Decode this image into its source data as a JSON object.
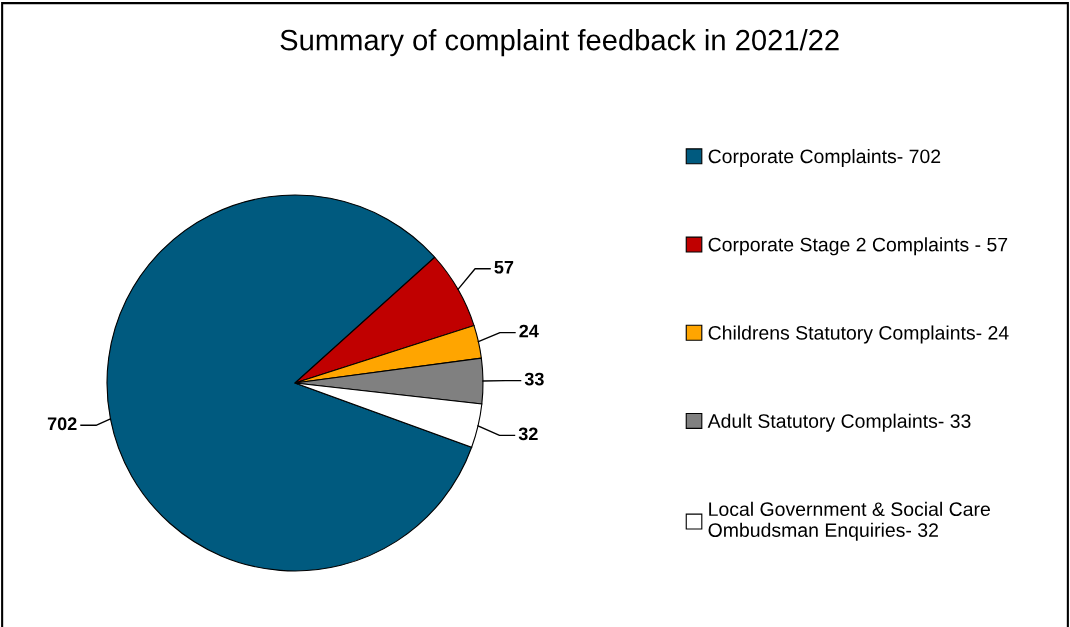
{
  "chart_data": {
    "type": "pie",
    "title": "Summary of complaint feedback in 2021/22",
    "categories": [
      "Corporate Complaints- 702",
      "Corporate Stage 2 Complaints - 57",
      "Childrens Statutory Complaints- 24",
      "Adult Statutory Complaints- 33",
      "Local Government & Social Care\nOmbudsman Enquiries- 32"
    ],
    "values": [
      702,
      57,
      24,
      33,
      32
    ],
    "colors": [
      "#005a7f",
      "#c00000",
      "#ffa500",
      "#808080",
      "#ffffff"
    ],
    "data_labels": true,
    "legend": "right"
  }
}
